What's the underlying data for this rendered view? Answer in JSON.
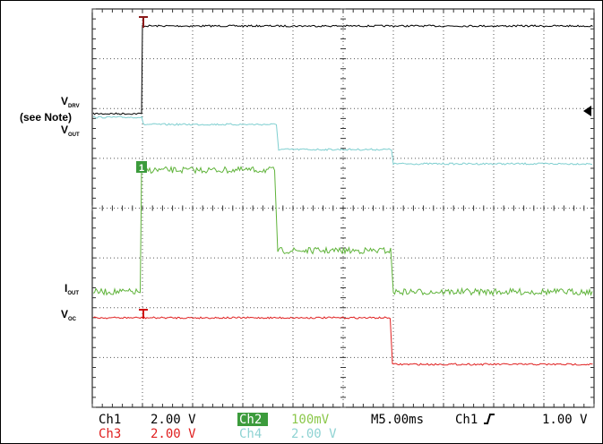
{
  "labels": {
    "vdrv": {
      "main": "V",
      "sub": "DRV"
    },
    "see_note": "(see Note)",
    "vout": {
      "main": "V",
      "sub": "OUT"
    },
    "iout": {
      "main": "I",
      "sub": "OUT"
    },
    "voc": {
      "main": "V",
      "sub": "OC"
    }
  },
  "marker": "1",
  "status": {
    "ch1": "Ch1",
    "ch1_scale": "2.00 V",
    "ch2": "Ch2",
    "ch2_scale": "100mV",
    "timebase": "M5.00ms",
    "trigger_source": "Ch1",
    "trigger_level": "1.00 V",
    "ch3": "Ch3",
    "ch3_scale": "2.00 V",
    "ch4": "Ch4",
    "ch4_scale": "2.00 V"
  }
}
